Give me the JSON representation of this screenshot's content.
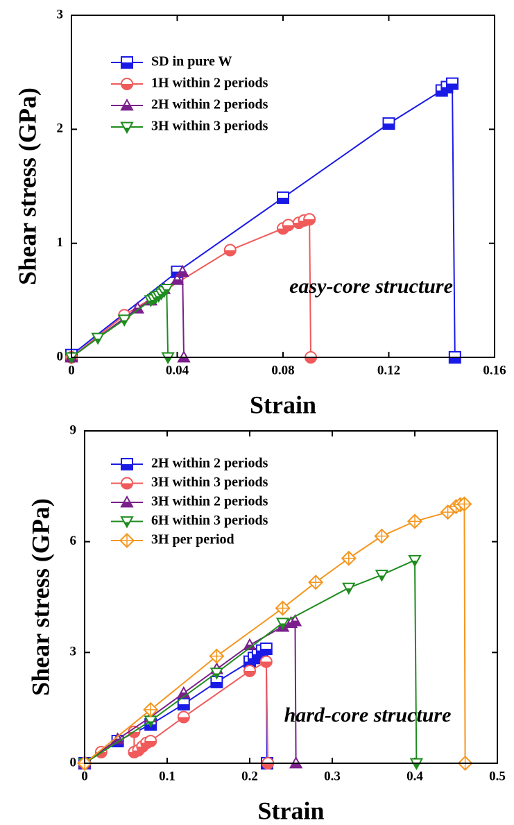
{
  "chart_data": [
    {
      "type": "line",
      "xlabel": "Strain",
      "ylabel": "Shear stress (GPa)",
      "annotation": "easy-core structure",
      "annotation_color": "#b01c1c",
      "xlim": [
        0,
        0.16
      ],
      "xticks": [
        0,
        0.04,
        0.08,
        0.12,
        0.16
      ],
      "ylim": [
        0,
        3
      ],
      "yticks": [
        0,
        1,
        2,
        3
      ],
      "legend": "upper left",
      "series": [
        {
          "name": "SD in pure W",
          "color": "#1a1ae6",
          "marker": "square",
          "x": [
            0,
            0.04,
            0.08,
            0.12,
            0.14,
            0.142,
            0.144,
            0.145
          ],
          "values": [
            0.02,
            0.75,
            1.4,
            2.05,
            2.34,
            2.37,
            2.4,
            0
          ]
        },
        {
          "name": "1H within 2 periods",
          "color": "#f05a5a",
          "marker": "circle",
          "x": [
            0,
            0.02,
            0.06,
            0.08,
            0.082,
            0.086,
            0.088,
            0.09,
            0.0905
          ],
          "values": [
            0,
            0.37,
            0.94,
            1.13,
            1.16,
            1.18,
            1.2,
            1.21,
            0
          ]
        },
        {
          "name": "2H within 2 periods",
          "color": "#7a1f8c",
          "marker": "triangle",
          "x": [
            0,
            0.025,
            0.03,
            0.035,
            0.04,
            0.042,
            0.0425
          ],
          "values": [
            0,
            0.43,
            0.5,
            0.6,
            0.68,
            0.75,
            0
          ]
        },
        {
          "name": "3H within 3 periods",
          "color": "#1f8c1f",
          "marker": "triangle-down",
          "x": [
            0,
            0.01,
            0.02,
            0.03,
            0.031,
            0.032,
            0.033,
            0.034,
            0.035,
            0.036,
            0.0365
          ],
          "values": [
            0,
            0.17,
            0.33,
            0.5,
            0.51,
            0.53,
            0.54,
            0.56,
            0.58,
            0.6,
            0
          ]
        }
      ]
    },
    {
      "type": "line",
      "xlabel": "Strain",
      "ylabel": "Shear stress (GPa)",
      "annotation": "hard-core structure",
      "annotation_color": "#b01c1c",
      "xlim": [
        0,
        0.5
      ],
      "xticks": [
        0,
        0.1,
        0.2,
        0.3,
        0.4,
        0.5
      ],
      "ylim": [
        0,
        9
      ],
      "yticks": [
        0,
        3,
        6,
        9
      ],
      "legend": "upper left",
      "series": [
        {
          "name": "2H within 2 periods",
          "color": "#1a1ae6",
          "marker": "square",
          "x": [
            0,
            0.04,
            0.08,
            0.12,
            0.16,
            0.2,
            0.205,
            0.21,
            0.215,
            0.22,
            0.221
          ],
          "values": [
            0,
            0.6,
            1.05,
            1.6,
            2.2,
            2.75,
            2.85,
            2.95,
            3.05,
            3.1,
            0
          ]
        },
        {
          "name": "3H within 3 periods",
          "color": "#f05a5a",
          "marker": "circle",
          "x": [
            0,
            0.02,
            0.06,
            0.06,
            0.065,
            0.07,
            0.075,
            0.08,
            0.12,
            0.2,
            0.22,
            0.222
          ],
          "values": [
            0,
            0.3,
            0.85,
            0.3,
            0.35,
            0.45,
            0.55,
            0.6,
            1.25,
            2.5,
            2.75,
            0
          ]
        },
        {
          "name": "3H within 2 periods",
          "color": "#7a1f8c",
          "marker": "triangle",
          "x": [
            0,
            0.04,
            0.08,
            0.12,
            0.16,
            0.2,
            0.24,
            0.25,
            0.255,
            0.256
          ],
          "values": [
            0,
            0.65,
            1.25,
            1.9,
            2.55,
            3.2,
            3.7,
            3.8,
            3.85,
            0
          ]
        },
        {
          "name": "6H within 3 periods",
          "color": "#1f8c1f",
          "marker": "triangle-down",
          "x": [
            0,
            0.08,
            0.16,
            0.24,
            0.32,
            0.36,
            0.4,
            0.402
          ],
          "values": [
            0,
            1.15,
            2.45,
            3.8,
            4.75,
            5.1,
            5.5,
            0
          ]
        },
        {
          "name": "3H per period",
          "color": "#f5961e",
          "marker": "diamond-cross",
          "x": [
            0,
            0.08,
            0.16,
            0.24,
            0.28,
            0.32,
            0.36,
            0.4,
            0.44,
            0.45,
            0.455,
            0.46,
            0.461
          ],
          "values": [
            0,
            1.45,
            2.9,
            4.2,
            4.9,
            5.55,
            6.15,
            6.55,
            6.8,
            6.95,
            7.0,
            7.02,
            0
          ]
        }
      ]
    }
  ]
}
